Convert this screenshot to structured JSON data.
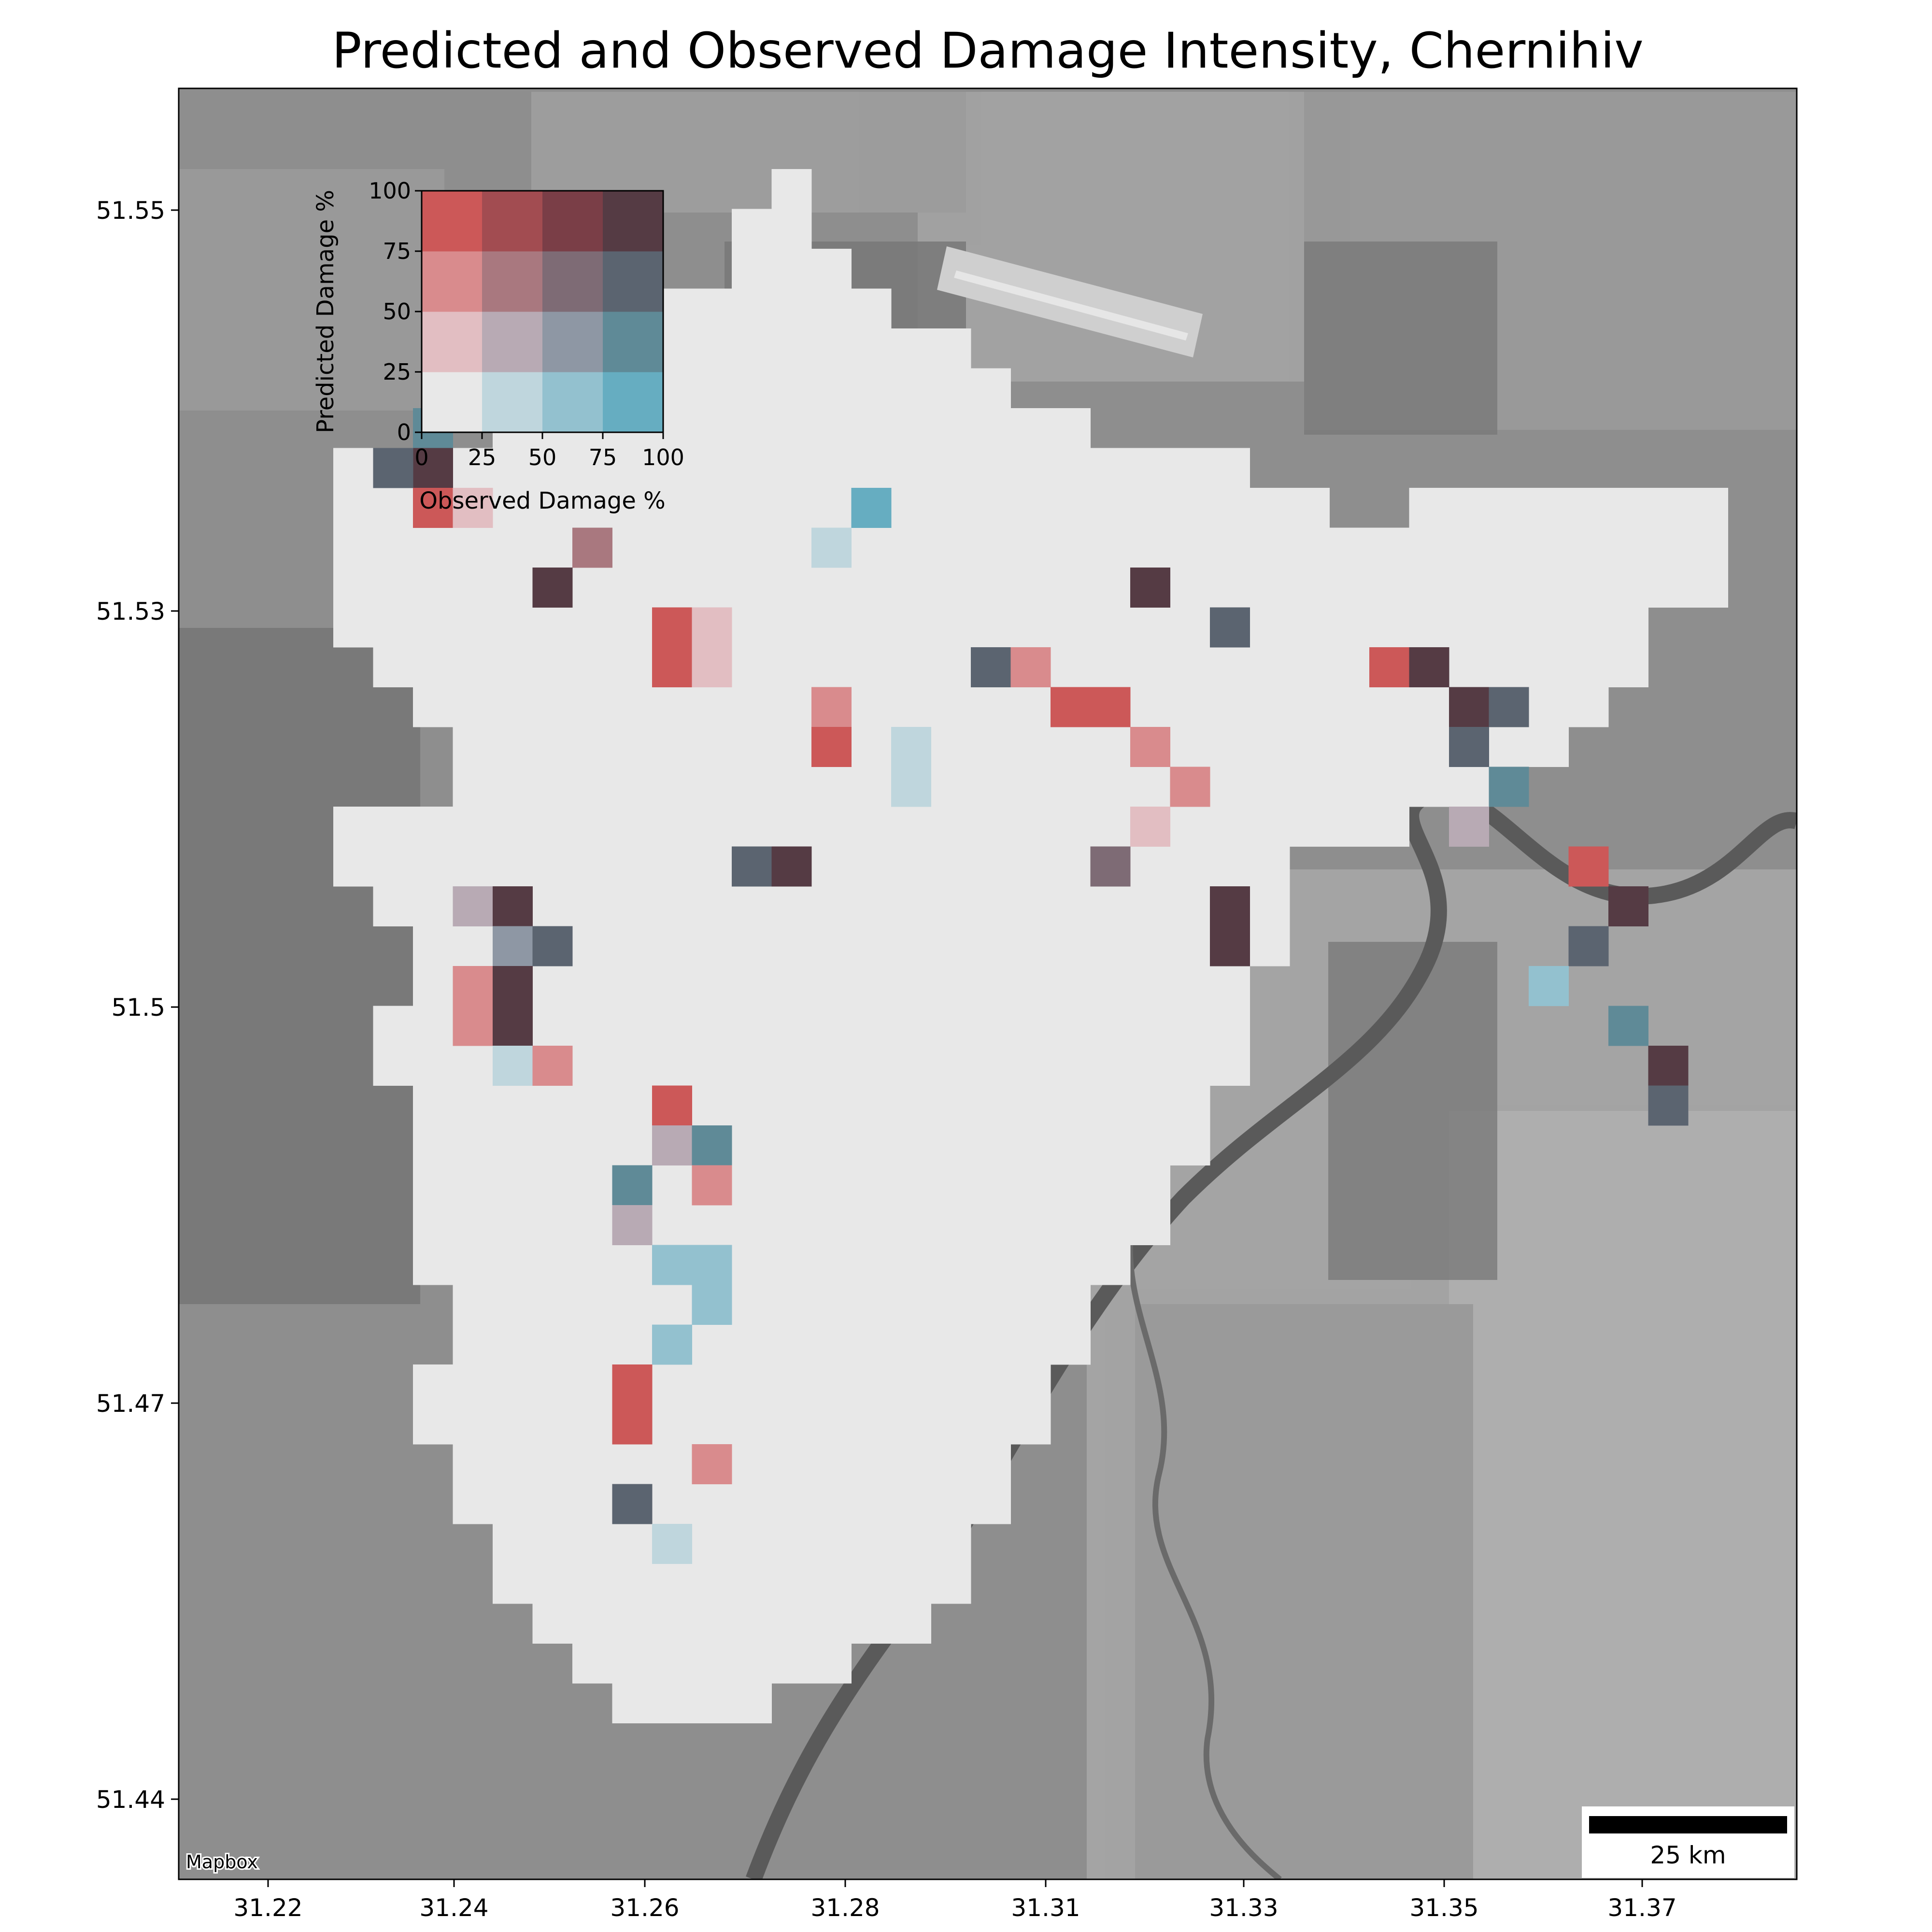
{
  "title": "Predicted and Observed Damage Intensity, Chernihiv",
  "attribution": "Mapbox",
  "scale_bar": {
    "label": "25 km"
  },
  "x_ticks": [
    "31.22",
    "31.24",
    "31.26",
    "31.28",
    "31.31",
    "31.33",
    "31.35",
    "31.37"
  ],
  "y_ticks": [
    "51.55",
    "51.53",
    "51.5",
    "51.47",
    "51.44"
  ],
  "legend": {
    "xlabel": "Observed Damage %",
    "ylabel": "Predicted Damage %",
    "x_ticks": [
      "0",
      "25",
      "50",
      "75",
      "100"
    ],
    "y_ticks": [
      "0",
      "25",
      "50",
      "75",
      "100"
    ],
    "colors": [
      [
        "#e8e8e8",
        "#bfd6dd",
        "#93c1cf",
        "#66adc1"
      ],
      [
        "#e2bec2",
        "#b8aab4",
        "#8e97a4",
        "#5f8a97"
      ],
      [
        "#d98b8d",
        "#a9787f",
        "#7e6b75",
        "#5b6470"
      ],
      [
        "#cc5858",
        "#a24c51",
        "#7a3e47",
        "#553b44"
      ]
    ]
  },
  "colors": {
    "basemap": "#8c8c8c",
    "basemap_light": "#b4b4b4",
    "basemap_dark": "#6c6c6c",
    "river": "#5f5f5f",
    "none": "#e8e8e8"
  },
  "chart_data": {
    "type": "heatmap",
    "title": "Predicted and Observed Damage Intensity, Chernihiv",
    "classes": {
      "x": "observed damage class 0-3 (0-25,25-50,50-75,75-100 %)",
      "y": "predicted damage class 0-3"
    },
    "grid": [
      "...................................W...........................",
      "..................................WW...........................",
      ".................................WWW...........................",
      "...............................WWWWW...........................",
      "...........................WWWWWWWWWW...........................",
      "...........................WWWWWWWWWWWW........................",
      "...............9.......WWWWW3WWWWWW.WWW..W.....................",
      ".............WWW1...........1WWWWWWWWWW...1....................",
      ".............WW.....A.WFWWWW4WWWWWWWWWWWW...WWW...............",
      "....WWWWWWWWWWWWWWWWW.WWWWWWWF8WWWWW...2WWW7WW..................",
      "....WWWWWWWWWWWWWWWWWWWWWWWWW8G6G..WWW2W2AWW......WWWW..C......",
      "....WWWWWWWWWWWWWWWWWWWWWWWWWW44WWWWWWWWW3WWW.....................",
      "....WWWWBFWWWWWWWWWWWWWA44WWWWWW..W.W.WA6W...WW.........",
      "....WWWWCEWWWWWWWWWWWWWWWWWWWWWWW6WWWW6BD8WWW.........",
      "...........................................................",
      "...........................................................",
      "..............................................................."
    ]
  }
}
